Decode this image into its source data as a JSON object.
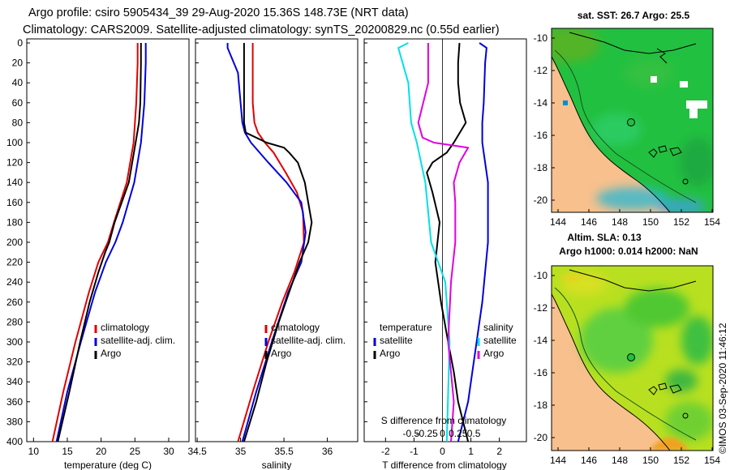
{
  "header": {
    "line1": "Argo profile: csiro 5905434_39 29-Aug-2020 15.36S 148.73E (NRT data)",
    "line2": "Climatology: CARS2009. Satellite-adjusted climatology: synTS_20200829.nc (0.55d earlier)"
  },
  "colors": {
    "climatology": "#e00000",
    "satellite": "#0000dd",
    "argo": "#000000",
    "t_diff": "#00e0e8",
    "s_diff": "#e000e0",
    "land": "#f8c08c",
    "sea_green": "#22c040"
  },
  "chart_data": [
    {
      "type": "line",
      "name": "temperature-panel",
      "xlabel": "temperature (deg C)",
      "ylabel": "",
      "xlim": [
        9,
        33
      ],
      "ylim": [
        400,
        0
      ],
      "xticks": [
        10,
        15,
        20,
        25,
        30
      ],
      "yticks": [
        0,
        20,
        40,
        60,
        80,
        100,
        120,
        140,
        160,
        180,
        200,
        220,
        240,
        260,
        280,
        300,
        320,
        340,
        360,
        380,
        400
      ],
      "series": [
        {
          "name": "climatology",
          "depth": [
            0,
            20,
            60,
            100,
            140,
            180,
            200,
            220,
            250,
            300,
            350,
            400
          ],
          "values": [
            25.4,
            25.4,
            25.2,
            24.8,
            23.8,
            21.9,
            21.0,
            19.6,
            18.2,
            16.2,
            14.4,
            12.8
          ]
        },
        {
          "name": "satellite-adj. clim.",
          "depth": [
            0,
            20,
            60,
            100,
            140,
            180,
            200,
            220,
            250,
            300,
            350,
            400
          ],
          "values": [
            26.6,
            26.6,
            26.4,
            25.9,
            24.9,
            23.2,
            22.1,
            20.7,
            19.1,
            17.0,
            15.0,
            13.4
          ]
        },
        {
          "name": "Argo",
          "depth": [
            0,
            20,
            60,
            80,
            100,
            140,
            180,
            200,
            210,
            230,
            260,
            300,
            350,
            400
          ],
          "values": [
            25.9,
            25.9,
            25.8,
            25.6,
            25.1,
            24.1,
            22.0,
            21.2,
            20.6,
            19.6,
            18.3,
            16.9,
            15.3,
            13.6
          ]
        }
      ],
      "legend": [
        "climatology",
        "satellite-adj. clim.",
        "Argo"
      ]
    },
    {
      "type": "line",
      "name": "salinity-panel",
      "xlabel": "salinity",
      "ylabel": "",
      "xlim": [
        34.48,
        36.35
      ],
      "ylim": [
        400,
        0
      ],
      "xticks": [
        34.5,
        35,
        35.5,
        36
      ],
      "tick_labels": [
        "34.5",
        "35",
        "35.5",
        "36"
      ],
      "series": [
        {
          "name": "climatology",
          "depth": [
            0,
            30,
            60,
            80,
            90,
            100,
            110,
            130,
            150,
            170,
            200,
            230,
            260,
            300,
            350,
            400
          ],
          "values": [
            35.14,
            35.14,
            35.14,
            35.16,
            35.2,
            35.28,
            35.38,
            35.52,
            35.65,
            35.72,
            35.73,
            35.62,
            35.48,
            35.32,
            35.14,
            34.97
          ]
        },
        {
          "name": "satellite-adj. clim.",
          "depth": [
            0,
            5,
            30,
            60,
            80,
            90,
            100,
            120,
            140,
            160,
            190,
            220,
            250,
            300,
            350,
            400
          ],
          "values": [
            34.85,
            34.85,
            34.97,
            35.0,
            35.02,
            35.05,
            35.12,
            35.32,
            35.53,
            35.7,
            35.75,
            35.7,
            35.55,
            35.36,
            35.18,
            35.02
          ]
        },
        {
          "name": "Argo",
          "depth": [
            0,
            20,
            40,
            60,
            80,
            90,
            100,
            105,
            110,
            120,
            140,
            160,
            180,
            200,
            220,
            250,
            280,
            320,
            360,
            400
          ],
          "values": [
            35.04,
            35.04,
            35.04,
            35.04,
            35.04,
            35.06,
            35.3,
            35.5,
            35.56,
            35.66,
            35.74,
            35.78,
            35.82,
            35.78,
            35.68,
            35.56,
            35.44,
            35.3,
            35.18,
            35.04
          ]
        }
      ],
      "legend": [
        "climatology",
        "satellite-adj. clim.",
        "Argo"
      ]
    },
    {
      "type": "line",
      "name": "difference-panel",
      "xlabel": "T difference from climatology",
      "top_xlabel": "S difference from climatology",
      "xlim": [
        -2.75,
        2.95
      ],
      "ylim": [
        400,
        0
      ],
      "xticks": [
        -2,
        -1,
        0,
        1,
        2
      ],
      "top_tick_values": [
        -0.5,
        -0.25,
        0,
        0.25,
        0.5
      ],
      "top_tick_labels": [
        "-0.5",
        "-0.25",
        "0",
        "0.25",
        "0.5"
      ],
      "series": [
        {
          "name": "T satellite",
          "depth": [
            0,
            5,
            20,
            60,
            80,
            100,
            140,
            200,
            260,
            300,
            360,
            400
          ],
          "values": [
            1.3,
            1.55,
            1.5,
            1.45,
            1.4,
            1.4,
            1.6,
            1.6,
            1.4,
            1.2,
            0.9,
            0.55
          ]
        },
        {
          "name": "T Argo",
          "depth": [
            0,
            20,
            40,
            60,
            80,
            100,
            110,
            120,
            130,
            150,
            180,
            220,
            260,
            300,
            330,
            360,
            400
          ],
          "values": [
            0.6,
            0.55,
            0.55,
            0.62,
            0.82,
            0.4,
            0.15,
            -0.35,
            -0.55,
            -0.35,
            -0.1,
            -0.25,
            -0.05,
            0.2,
            0.4,
            0.55,
            0.9
          ]
        },
        {
          "name": "S satellite",
          "depth": [
            0,
            5,
            40,
            80,
            100,
            140,
            200,
            240,
            300,
            400
          ],
          "values": [
            -1.2,
            -1.55,
            -1.2,
            -1.1,
            -0.9,
            -0.6,
            -0.4,
            0.1,
            0.25,
            0.15
          ]
        },
        {
          "name": "S Argo",
          "depth": [
            0,
            40,
            80,
            95,
            100,
            105,
            120,
            140,
            160,
            200,
            240,
            300,
            360,
            400
          ],
          "values": [
            -0.5,
            -0.5,
            -0.85,
            -0.7,
            -0.3,
            0.9,
            0.6,
            0.4,
            0.45,
            0.45,
            0.3,
            0.2,
            0.4,
            0.3
          ]
        }
      ],
      "legend_temperature": {
        "heading": "temperature",
        "items": [
          "satellite",
          "Argo"
        ]
      },
      "legend_salinity": {
        "heading": "salinity",
        "items": [
          "satellite",
          "Argo"
        ]
      }
    }
  ],
  "maps": {
    "sst": {
      "title": "sat. SST: 26.7  Argo: 25.5",
      "x_ticks": [
        "144",
        "146",
        "148",
        "150",
        "152",
        "154"
      ],
      "y_ticks": [
        "-10",
        "-12",
        "-14",
        "-16",
        "-18",
        "-20"
      ]
    },
    "sla": {
      "title_line1": "Altim. SLA: 0.13",
      "title_line2": "Argo h1000: 0.014 h2000: NaN",
      "x_ticks": [
        "144",
        "146",
        "148",
        "150",
        "152",
        "154"
      ],
      "y_ticks": [
        "-10",
        "-12",
        "-14",
        "-16",
        "-18",
        "-20"
      ]
    }
  },
  "credit": "©IMOS 03-Sep-2020 11:46:12"
}
